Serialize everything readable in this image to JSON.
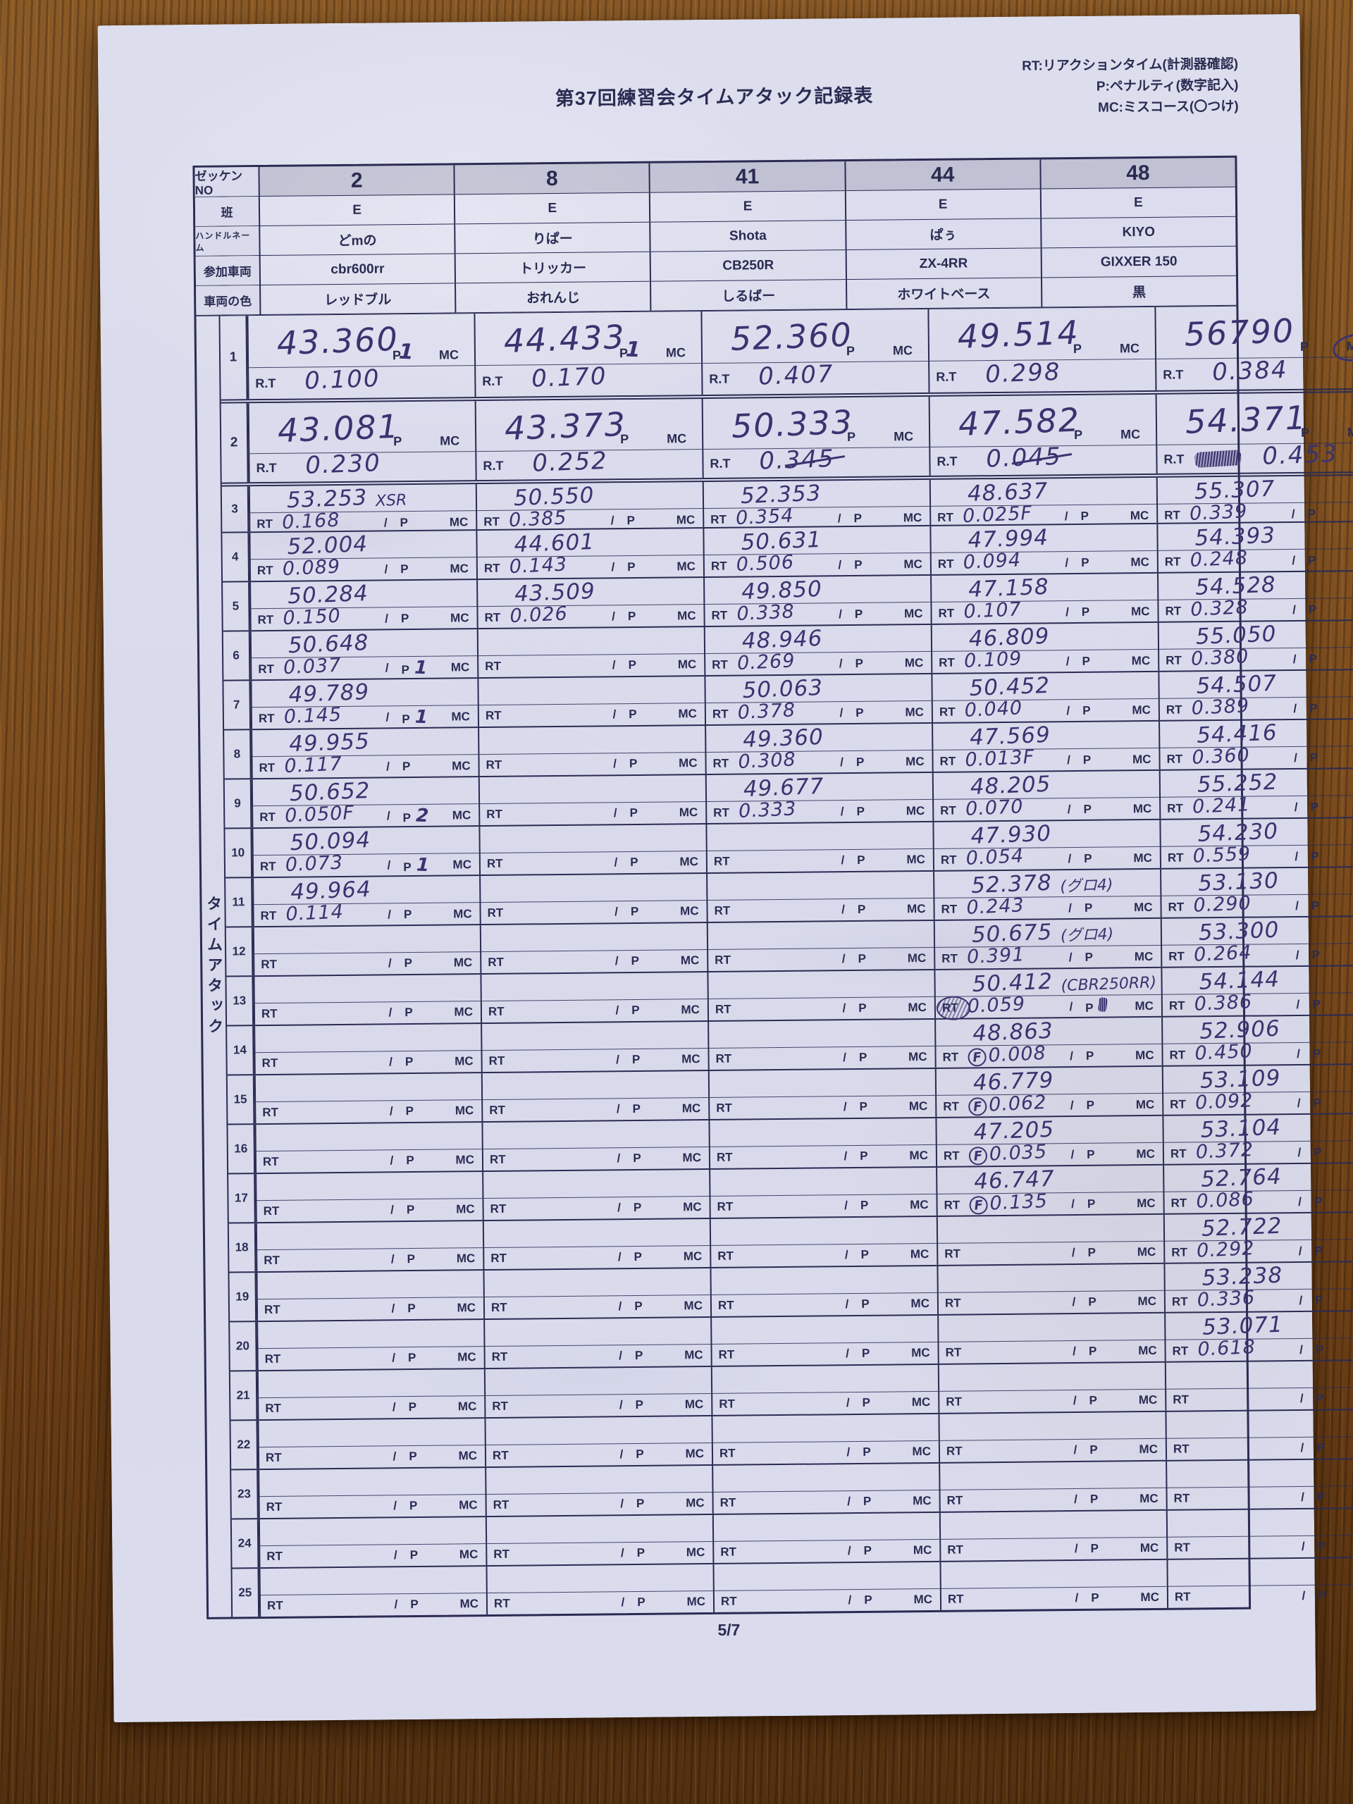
{
  "title": "第37回練習会タイムアタック記録表",
  "legend": [
    "RT:リアクションタイム(計測器確認)",
    "P:ペナルティ(数字記入)",
    "MC:ミスコース(〇つけ)"
  ],
  "page_number": "5/7",
  "side_label": "タイムアタック",
  "labels": {
    "rt_small": "RT",
    "rt_large": "R.T",
    "slash": "/",
    "penalty": "P",
    "miscourse": "MC"
  },
  "header_rows": [
    {
      "label": "ゼッケンNO",
      "values": [
        "2",
        "8",
        "41",
        "44",
        "48"
      ]
    },
    {
      "label": "班",
      "values": [
        "E",
        "E",
        "E",
        "E",
        "E"
      ]
    },
    {
      "label": "ハンドルネーム",
      "values": [
        "どmの",
        "りぱー",
        "Shota",
        "ぱぅ",
        "KIYO"
      ]
    },
    {
      "label": "参加車両",
      "values": [
        "cbr600rr",
        "トリッカー",
        "CB250R",
        "ZX-4RR",
        "GIXXER 150"
      ]
    },
    {
      "label": "車両の色",
      "values": [
        "レッドブル",
        "おれんじ",
        "しるばー",
        "ホワイトベース",
        "黒"
      ]
    }
  ],
  "attempts": [
    {
      "no": 1,
      "large": true,
      "cells": [
        {
          "time": "43.360",
          "p": "1",
          "rt": "0.100"
        },
        {
          "time": "44.433",
          "p": "1",
          "rt": "0.170"
        },
        {
          "time": "52.360",
          "rt": "0.407"
        },
        {
          "time": "49.514",
          "rt": "0.298"
        },
        {
          "time": "56790",
          "rt": "0.384",
          "mc_circled": true
        }
      ]
    },
    {
      "no": 2,
      "large": true,
      "cells": [
        {
          "time": "43.081",
          "rt": "0.230"
        },
        {
          "time": "43.373",
          "rt": "0.252"
        },
        {
          "time": "50.333",
          "rt": "0.345",
          "rt_strike": true
        },
        {
          "time": "47.582",
          "rt": "0.045",
          "rt_strike": true
        },
        {
          "time": "54.371",
          "rt": "0.453",
          "rt_scribble": true
        }
      ]
    },
    {
      "no": 3,
      "cells": [
        {
          "time": "53.253",
          "note": "XSR",
          "rt": "0.168"
        },
        {
          "time": "50.550",
          "rt": "0.385"
        },
        {
          "time": "52.353",
          "rt": "0.354"
        },
        {
          "time": "48.637",
          "rt": "0.025F"
        },
        {
          "time": "55.307",
          "rt": "0.339"
        }
      ]
    },
    {
      "no": 4,
      "cells": [
        {
          "time": "52.004",
          "rt": "0.089"
        },
        {
          "time": "44.601",
          "rt": "0.143"
        },
        {
          "time": "50.631",
          "rt": "0.506"
        },
        {
          "time": "47.994",
          "rt": "0.094"
        },
        {
          "time": "54.393",
          "rt": "0.248"
        }
      ]
    },
    {
      "no": 5,
      "cells": [
        {
          "time": "50.284",
          "rt": "0.150"
        },
        {
          "time": "43.509",
          "rt": "0.026"
        },
        {
          "time": "49.850",
          "rt": "0.338"
        },
        {
          "time": "47.158",
          "rt": "0.107"
        },
        {
          "time": "54.528",
          "rt": "0.328"
        }
      ]
    },
    {
      "no": 6,
      "cells": [
        {
          "time": "50.648",
          "rt": "0.037",
          "p": "1"
        },
        null,
        {
          "time": "48.946",
          "rt": "0.269"
        },
        {
          "time": "46.809",
          "rt": "0.109"
        },
        {
          "time": "55.050",
          "rt": "0.380"
        }
      ]
    },
    {
      "no": 7,
      "cells": [
        {
          "time": "49.789",
          "rt": "0.145",
          "p": "1"
        },
        null,
        {
          "time": "50.063",
          "rt": "0.378"
        },
        {
          "time": "50.452",
          "rt": "0.040"
        },
        {
          "time": "54.507",
          "rt": "0.389"
        }
      ]
    },
    {
      "no": 8,
      "cells": [
        {
          "time": "49.955",
          "rt": "0.117"
        },
        null,
        {
          "time": "49.360",
          "rt": "0.308"
        },
        {
          "time": "47.569",
          "rt": "0.013F"
        },
        {
          "time": "54.416",
          "rt": "0.360"
        }
      ]
    },
    {
      "no": 9,
      "cells": [
        {
          "time": "50.652",
          "rt": "0.050F",
          "p": "2"
        },
        null,
        {
          "time": "49.677",
          "rt": "0.333"
        },
        {
          "time": "48.205",
          "rt": "0.070"
        },
        {
          "time": "55.252",
          "rt": "0.241"
        }
      ]
    },
    {
      "no": 10,
      "cells": [
        {
          "time": "50.094",
          "rt": "0.073",
          "p": "1"
        },
        null,
        null,
        {
          "time": "47.930",
          "rt": "0.054"
        },
        {
          "time": "54.230",
          "rt": "0.559"
        }
      ]
    },
    {
      "no": 11,
      "cells": [
        {
          "time": "49.964",
          "rt": "0.114"
        },
        null,
        null,
        {
          "time": "52.378",
          "note": "(グロ4)",
          "rt": "0.243"
        },
        {
          "time": "53.130",
          "rt": "0.290"
        }
      ]
    },
    {
      "no": 12,
      "cells": [
        null,
        null,
        null,
        {
          "time": "50.675",
          "note": "(グロ4)",
          "rt": "0.391"
        },
        {
          "time": "53.300",
          "rt": "0.264"
        }
      ]
    },
    {
      "no": 13,
      "cells": [
        null,
        null,
        null,
        {
          "time": "50.412",
          "note": "(CBR250RR)",
          "rt": "0.059",
          "rt_label_scribbled": true,
          "p_scribble": true
        },
        {
          "time": "54.144",
          "rt": "0.386"
        }
      ]
    },
    {
      "no": 14,
      "cells": [
        null,
        null,
        null,
        {
          "time": "48.863",
          "rt": "0.008",
          "rt_f": true
        },
        {
          "time": "52.906",
          "rt": "0.450"
        }
      ]
    },
    {
      "no": 15,
      "cells": [
        null,
        null,
        null,
        {
          "time": "46.779",
          "rt": "0.062",
          "rt_f": true
        },
        {
          "time": "53.109",
          "rt": "0.092"
        }
      ]
    },
    {
      "no": 16,
      "cells": [
        null,
        null,
        null,
        {
          "time": "47.205",
          "rt": "0.035",
          "rt_f": true
        },
        {
          "time": "53.104",
          "rt": "0.372"
        }
      ]
    },
    {
      "no": 17,
      "cells": [
        null,
        null,
        null,
        {
          "time": "46.747",
          "rt": "0.135",
          "rt_f": true
        },
        {
          "time": "52.764",
          "rt": "0.086"
        }
      ]
    },
    {
      "no": 18,
      "cells": [
        null,
        null,
        null,
        null,
        {
          "time": "52.722",
          "rt": "0.292"
        }
      ]
    },
    {
      "no": 19,
      "cells": [
        null,
        null,
        null,
        null,
        {
          "time": "53.238",
          "rt": "0.336"
        }
      ]
    },
    {
      "no": 20,
      "cells": [
        null,
        null,
        null,
        null,
        {
          "time": "53.071",
          "rt": "0.618"
        }
      ]
    },
    {
      "no": 21,
      "cells": [
        null,
        null,
        null,
        null,
        null
      ]
    },
    {
      "no": 22,
      "cells": [
        null,
        null,
        null,
        null,
        null
      ]
    },
    {
      "no": 23,
      "cells": [
        null,
        null,
        null,
        null,
        null
      ]
    },
    {
      "no": 24,
      "cells": [
        null,
        null,
        null,
        null,
        null
      ]
    },
    {
      "no": 25,
      "cells": [
        null,
        null,
        null,
        null,
        null
      ]
    }
  ]
}
